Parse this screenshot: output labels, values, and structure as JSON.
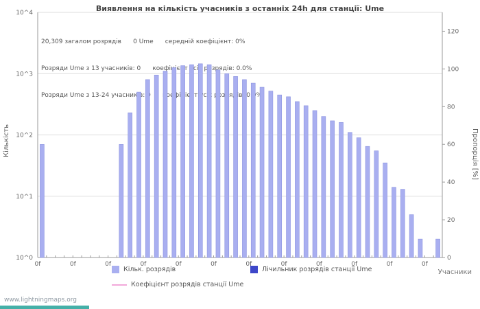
{
  "title": "Виявлення на кількість учасників з останніх 24h для станції: Ume",
  "annotations": [
    "20,309 загалом розрядів      0 Ume      середній коефіцієнт: 0%",
    "Розряди Ume з 13 учасників: 0      коефіцієнт усіх розрядів: 0.0%",
    "Розряди Ume з 13-24 учасників: 0      коефіцієнт усіх розрядів: 0.0%"
  ],
  "footer": {
    "link_text": "www.lightningmaps.org"
  },
  "legend": {
    "items": [
      {
        "label": "Кільк. розрядів",
        "color": "#a9aff0",
        "shape": "square"
      },
      {
        "label": "Лічильник розрядів станції Ume",
        "color": "#3d47c9",
        "shape": "square"
      },
      {
        "label": "Коефіцієнт розрядів станції Ume",
        "color": "#f2a8da",
        "shape": "line"
      }
    ]
  },
  "chart_data": {
    "type": "bar",
    "title": "Виявлення на кількість учасників з останніх 24h для станції: Ume",
    "xlabel": "Учасники",
    "ylabel_left": "Кількість",
    "ylabel_right": "Пропорція [%]",
    "y_scale_left": "log10",
    "ylim_left": [
      1,
      10000
    ],
    "ylim_right": [
      0,
      130
    ],
    "y_ticks_left": [
      "10^0",
      "10^1",
      "10^2",
      "10^3",
      "10^4"
    ],
    "y_ticks_right": [
      0,
      20,
      40,
      60,
      80,
      100,
      120
    ],
    "x_tick_labels": [
      "0f",
      "0f",
      "0f",
      "0f",
      "0f",
      "0f",
      "0f",
      "0f",
      "0f",
      "0f",
      "0f",
      "0f"
    ],
    "x_ticks_per_label": 4,
    "slot_count": 46,
    "grid_on": true,
    "legend_position": "bottom",
    "bar_color": "#a9aff0",
    "bar_border": "#8d94e0",
    "grid_color": "#dddddd",
    "axis_color": "#999999",
    "bars": [
      [
        0,
        70
      ],
      [
        9,
        70
      ],
      [
        10,
        230
      ],
      [
        11,
        500
      ],
      [
        12,
        800
      ],
      [
        13,
        950
      ],
      [
        14,
        1100
      ],
      [
        15,
        1250
      ],
      [
        16,
        1350
      ],
      [
        17,
        1400
      ],
      [
        18,
        1450
      ],
      [
        19,
        1400
      ],
      [
        20,
        1150
      ],
      [
        21,
        1000
      ],
      [
        22,
        900
      ],
      [
        23,
        800
      ],
      [
        24,
        700
      ],
      [
        25,
        600
      ],
      [
        26,
        520
      ],
      [
        27,
        450
      ],
      [
        28,
        420
      ],
      [
        29,
        350
      ],
      [
        30,
        300
      ],
      [
        31,
        250
      ],
      [
        32,
        200
      ],
      [
        33,
        170
      ],
      [
        34,
        160
      ],
      [
        35,
        110
      ],
      [
        36,
        90
      ],
      [
        37,
        65
      ],
      [
        38,
        55
      ],
      [
        39,
        35
      ],
      [
        40,
        14
      ],
      [
        41,
        13
      ],
      [
        42,
        5
      ],
      [
        43,
        2
      ],
      [
        45,
        2
      ]
    ],
    "series": [
      {
        "name": "Кільк. розрядів",
        "type": "bar",
        "axis": "left"
      },
      {
        "name": "Лічильник розрядів станції Ume",
        "type": "bar",
        "axis": "left",
        "values": []
      },
      {
        "name": "Коефіцієнт розрядів станції Ume",
        "type": "line",
        "axis": "right",
        "values": []
      }
    ]
  }
}
